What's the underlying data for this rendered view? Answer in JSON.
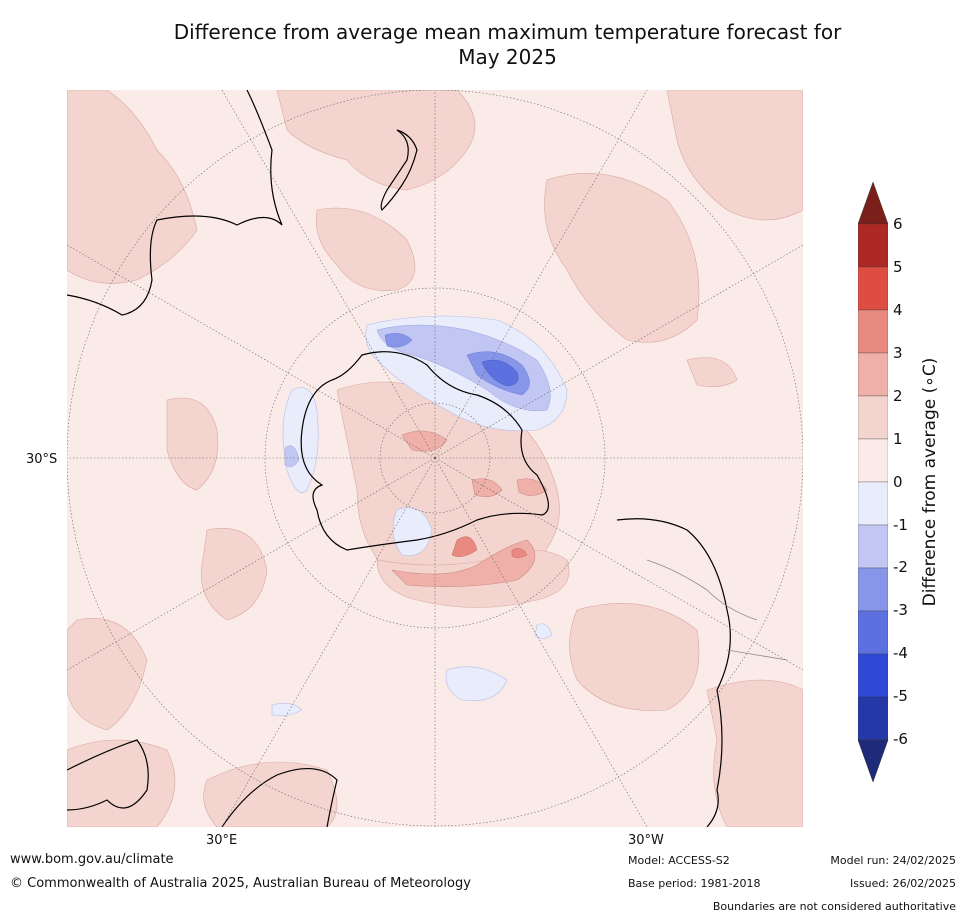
{
  "title": {
    "line1": "Difference from average mean maximum temperature forecast for",
    "line2": "May 2025"
  },
  "map": {
    "lat_label": "30°S",
    "lon_labels": {
      "east": "30°E",
      "west": "30°W"
    },
    "projection": "south polar stereographic",
    "land_outline_color": "#000000",
    "background_color": "#fbebe8"
  },
  "colorbar": {
    "label": "Difference from average (∘C)",
    "ticks": [
      "6",
      "5",
      "4",
      "3",
      "2",
      "1",
      "0",
      "-1",
      "-2",
      "-3",
      "-4",
      "-5",
      "-6"
    ],
    "bands": [
      {
        "range": ">6",
        "color": "#7a1f1a"
      },
      {
        "range": "5 to 6",
        "color": "#ad2a24"
      },
      {
        "range": "4 to 5",
        "color": "#dd4d42"
      },
      {
        "range": "3 to 4",
        "color": "#e88a80"
      },
      {
        "range": "2 to 3",
        "color": "#eeb0a8"
      },
      {
        "range": "1 to 2",
        "color": "#f4d4cf"
      },
      {
        "range": "0 to 1",
        "color": "#fbebe8"
      },
      {
        "range": "-1 to 0",
        "color": "#e9ecfb"
      },
      {
        "range": "-2 to -1",
        "color": "#c1c7f2"
      },
      {
        "range": "-3 to -2",
        "color": "#8796e8"
      },
      {
        "range": "-4 to -3",
        "color": "#5c70e0"
      },
      {
        "range": "-5 to -4",
        "color": "#2e49d7"
      },
      {
        "range": "-6 to -5",
        "color": "#2538a8"
      },
      {
        "range": "<-6",
        "color": "#1e2a7a"
      }
    ]
  },
  "footer": {
    "website": "www.bom.gov.au/climate",
    "copyright": "© Commonwealth of Australia 2025, Australian Bureau of Meteorology",
    "model": "Model: ACCESS-S2",
    "base_period": "Base period: 1981-2018",
    "model_run": "Model run: 24/02/2025",
    "issued": "Issued: 26/02/2025",
    "disclaimer": "Boundaries are not considered authoritative"
  }
}
